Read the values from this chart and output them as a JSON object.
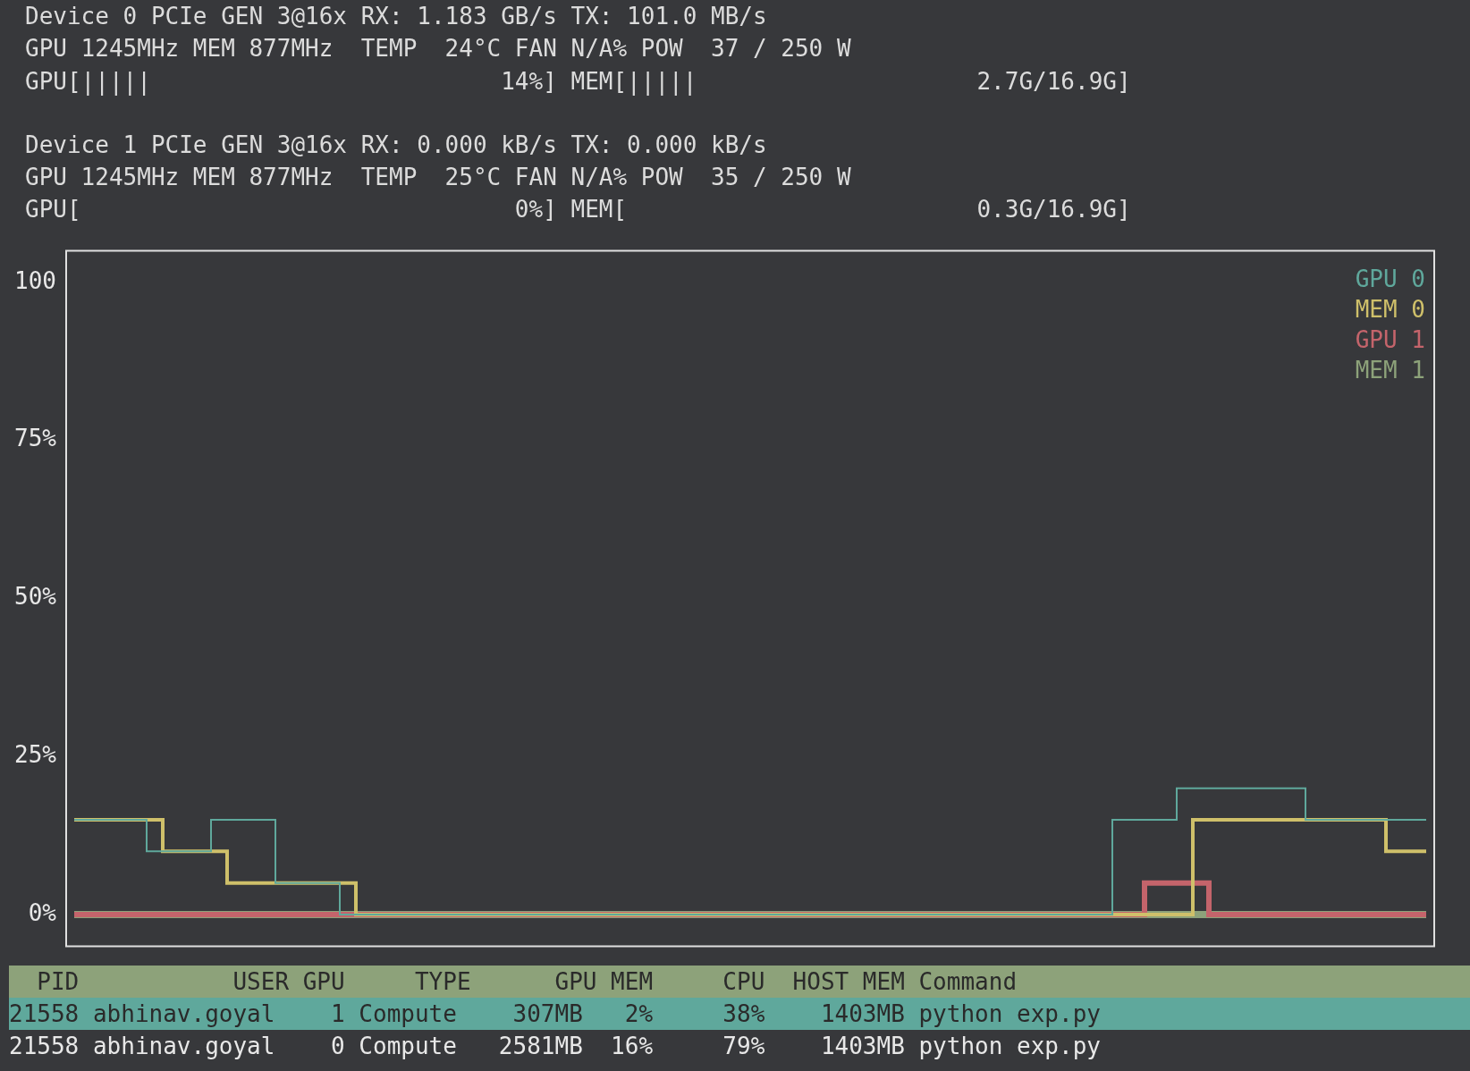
{
  "chart_data": {
    "type": "step",
    "categories": [
      null,
      null,
      null,
      null,
      null,
      null,
      null,
      null,
      null,
      null,
      null,
      null,
      null,
      null,
      null,
      null,
      null,
      null,
      null,
      null,
      null,
      null,
      null,
      null,
      null,
      null,
      null,
      null,
      null,
      null,
      null,
      null,
      null,
      null,
      null,
      null,
      null,
      null,
      null,
      null,
      null,
      null,
      null,
      null,
      null,
      null,
      null,
      null,
      null,
      null,
      null,
      null,
      null,
      null,
      null,
      null,
      null,
      null,
      null,
      null,
      null,
      null,
      null,
      null,
      null,
      null,
      null,
      null,
      null,
      null,
      null,
      null,
      null,
      null,
      null,
      null,
      null,
      null,
      null,
      null,
      null,
      null,
      null,
      null,
      null
    ],
    "series": [
      {
        "name": "GPU 0",
        "color": "#5fa89c",
        "values": [
          15,
          15,
          15,
          15,
          15,
          10,
          10,
          10,
          10,
          15,
          15,
          15,
          15,
          5,
          5,
          5,
          5,
          0,
          0,
          0,
          0,
          0,
          0,
          0,
          0,
          0,
          0,
          0,
          0,
          0,
          0,
          0,
          0,
          0,
          0,
          0,
          0,
          0,
          0,
          0,
          0,
          0,
          0,
          0,
          0,
          0,
          0,
          0,
          0,
          0,
          0,
          0,
          0,
          0,
          0,
          0,
          0,
          0,
          0,
          0,
          0,
          0,
          0,
          0,
          0,
          15,
          15,
          15,
          15,
          20,
          20,
          20,
          20,
          20,
          20,
          20,
          20,
          15,
          15,
          15,
          15,
          15,
          15,
          15,
          15
        ]
      },
      {
        "name": "MEM 0",
        "color": "#cfc06a",
        "values": [
          15,
          15,
          15,
          15,
          15,
          15,
          10,
          10,
          10,
          10,
          5,
          5,
          5,
          5,
          5,
          5,
          5,
          5,
          0,
          0,
          0,
          0,
          0,
          0,
          0,
          0,
          0,
          0,
          0,
          0,
          0,
          0,
          0,
          0,
          0,
          0,
          0,
          0,
          0,
          0,
          0,
          0,
          0,
          0,
          0,
          0,
          0,
          0,
          0,
          0,
          0,
          0,
          0,
          0,
          0,
          0,
          0,
          0,
          0,
          0,
          0,
          0,
          0,
          0,
          0,
          0,
          0,
          0,
          0,
          0,
          15,
          15,
          15,
          15,
          15,
          15,
          15,
          15,
          15,
          15,
          15,
          15,
          10,
          10,
          10
        ]
      },
      {
        "name": "GPU 1",
        "color": "#c4646b",
        "values": [
          0,
          0,
          0,
          0,
          0,
          0,
          0,
          0,
          0,
          0,
          0,
          0,
          0,
          0,
          0,
          0,
          0,
          0,
          0,
          0,
          0,
          0,
          0,
          0,
          0,
          0,
          0,
          0,
          0,
          0,
          0,
          0,
          0,
          0,
          0,
          0,
          0,
          0,
          0,
          0,
          0,
          0,
          0,
          0,
          0,
          0,
          0,
          0,
          0,
          0,
          0,
          0,
          0,
          0,
          0,
          0,
          0,
          0,
          0,
          0,
          0,
          0,
          0,
          0,
          0,
          0,
          0,
          5,
          5,
          5,
          5,
          0,
          0,
          0,
          0,
          0,
          0,
          0,
          0,
          0,
          0,
          0,
          0,
          0,
          0
        ]
      },
      {
        "name": "MEM 1",
        "color": "#8da27a",
        "values": [
          0,
          0,
          0,
          0,
          0,
          0,
          0,
          0,
          0,
          0,
          0,
          0,
          0,
          0,
          0,
          0,
          0,
          0,
          0,
          0,
          0,
          0,
          0,
          0,
          0,
          0,
          0,
          0,
          0,
          0,
          0,
          0,
          0,
          0,
          0,
          0,
          0,
          0,
          0,
          0,
          0,
          0,
          0,
          0,
          0,
          0,
          0,
          0,
          0,
          0,
          0,
          0,
          0,
          0,
          0,
          0,
          0,
          0,
          0,
          0,
          0,
          0,
          0,
          0,
          0,
          0,
          0,
          0,
          0,
          0,
          0,
          0,
          0,
          0,
          0,
          0,
          0,
          0,
          0,
          0,
          0,
          0,
          0,
          0,
          0
        ]
      }
    ],
    "ylim": [
      -5,
      105
    ],
    "yticks": [
      {
        "value": 0,
        "label": "0%"
      },
      {
        "value": 25,
        "label": "25%"
      },
      {
        "value": 50,
        "label": "50%"
      },
      {
        "value": 75,
        "label": "75%"
      },
      100
    ],
    "tick_labels": "y",
    "legend": "top right",
    "annotations": [
      "Device 0 PCIe GEN 3@16x RX: 1.183 GB/s TX: 101.0 MB/s",
      "GPU 1245MHz MEM 877MHz  TEMP  24°C FAN N/A% POW  37 / 250 W",
      "GPU[|||||                         14%] MEM[|||||                    2.7G/16.9G]",
      "Device 1 PCIe GEN 3@16x RX: 0.000 kB/s TX: 0.000 kB/s",
      "GPU 1245MHz MEM 877MHz  TEMP  25°C FAN N/A% POW  35 / 250 W",
      "GPU[                               0%] MEM[                         0.3G/16.9G]",
      "  PID           USER GPU     TYPE      GPU MEM     CPU  HOST MEM Command",
      "21558 abhinav.goyal    1 Compute    307MB   2%     38%    1403MB python exp.py",
      "21558 abhinav.goyal    0 Compute   2581MB  16%     79%    1403MB python exp.py"
    ]
  }
}
